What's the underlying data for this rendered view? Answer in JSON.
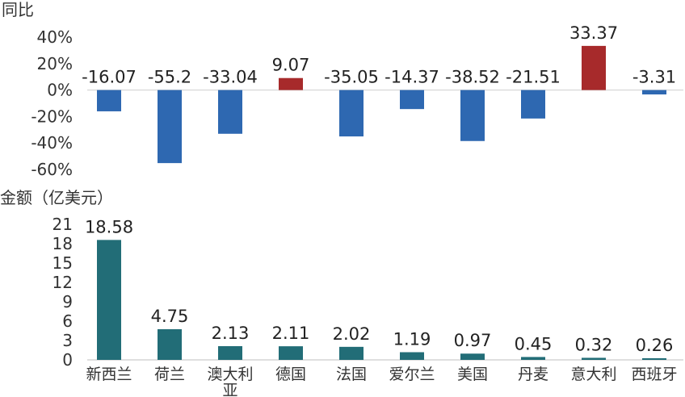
{
  "chart_data": [
    {
      "type": "bar",
      "ylabel": "同比",
      "categories": [
        "新西兰",
        "荷兰",
        "澳大利亚",
        "德国",
        "法国",
        "爱尔兰",
        "美国",
        "丹麦",
        "意大利",
        "西班牙"
      ],
      "values": [
        -16.07,
        -55.2,
        -33.04,
        9.07,
        -35.05,
        -14.37,
        -38.52,
        -21.51,
        33.37,
        -3.31
      ],
      "data_labels": [
        "-16.07",
        "-55.2",
        "-33.04",
        "9.07",
        "-35.05",
        "-14.37",
        "-38.52",
        "-21.51",
        "33.37",
        "-3.31"
      ],
      "yticks": [
        40,
        20,
        0,
        -20,
        -40,
        -60
      ],
      "ytick_labels": [
        "40%",
        "20%",
        "0%",
        "-20%",
        "-40%",
        "-60%"
      ],
      "ylim": [
        -60,
        40
      ],
      "colors": {
        "positive": "#A72A2B",
        "negative": "#2E68B1"
      },
      "grid": false
    },
    {
      "type": "bar",
      "ylabel": "金额（亿美元）",
      "categories": [
        "新西兰",
        "荷兰",
        "澳大利亚",
        "德国",
        "法国",
        "爱尔兰",
        "美国",
        "丹麦",
        "意大利",
        "西班牙"
      ],
      "category_labels": [
        [
          "新西兰"
        ],
        [
          "荷兰"
        ],
        [
          "澳大利",
          "亚"
        ],
        [
          "德国"
        ],
        [
          "法国"
        ],
        [
          "爱尔兰"
        ],
        [
          "美国"
        ],
        [
          "丹麦"
        ],
        [
          "意大利"
        ],
        [
          "西班牙"
        ]
      ],
      "values": [
        18.58,
        4.75,
        2.13,
        2.11,
        2.02,
        1.19,
        0.97,
        0.45,
        0.32,
        0.26
      ],
      "data_labels": [
        "18.58",
        "4.75",
        "2.13",
        "2.11",
        "2.02",
        "1.19",
        "0.97",
        "0.45",
        "0.32",
        "0.26"
      ],
      "yticks": [
        21,
        18,
        15,
        12,
        9,
        6,
        3,
        0
      ],
      "ytick_labels": [
        "21",
        "18",
        "15",
        "12",
        "9",
        "6",
        "3",
        "0"
      ],
      "ylim": [
        0,
        21
      ],
      "colors": {
        "bar": "#226D77"
      },
      "grid": false
    }
  ]
}
